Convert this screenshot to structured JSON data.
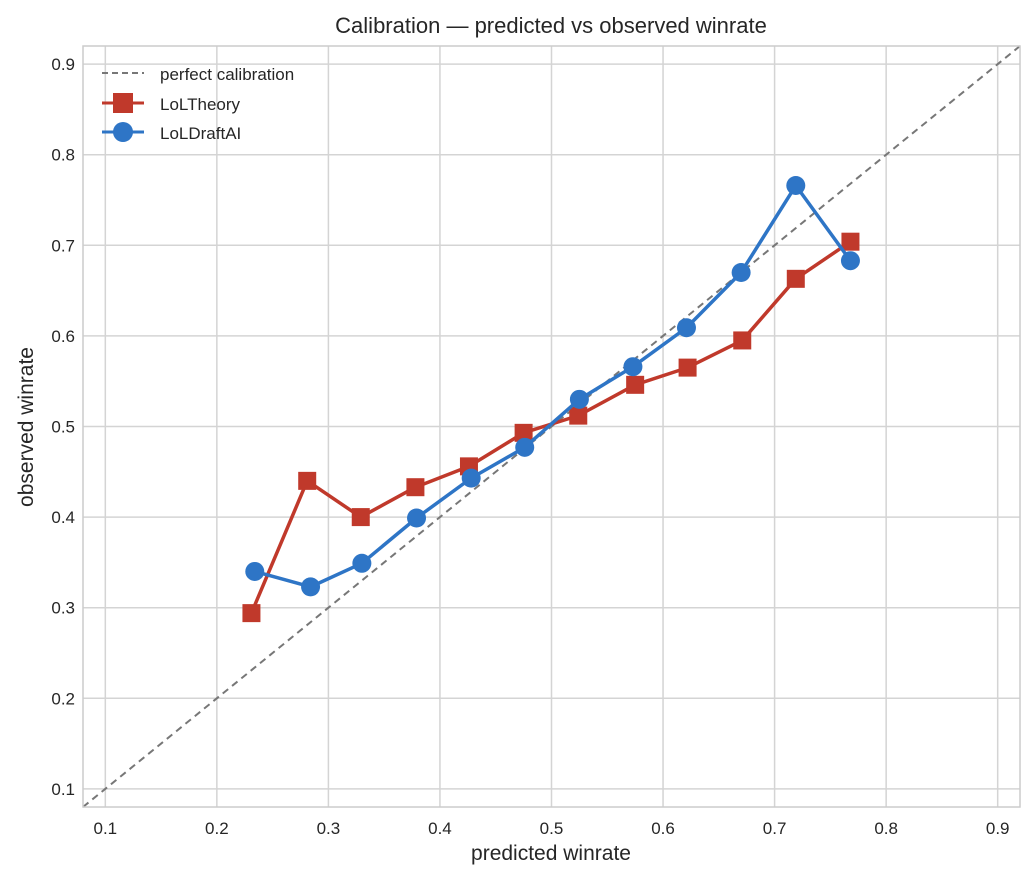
{
  "chart_data": {
    "type": "line",
    "title": "Calibration — predicted vs observed winrate",
    "xlabel": "predicted winrate",
    "ylabel": "observed winrate",
    "xlim": [
      0.08,
      0.92
    ],
    "ylim": [
      0.08,
      0.92
    ],
    "xticks": [
      0.1,
      0.2,
      0.3,
      0.4,
      0.5,
      0.6,
      0.7,
      0.8,
      0.9
    ],
    "yticks": [
      0.1,
      0.2,
      0.3,
      0.4,
      0.5,
      0.6,
      0.7,
      0.8,
      0.9
    ],
    "xtick_labels": [
      "0.1",
      "0.2",
      "0.3",
      "0.4",
      "0.5",
      "0.6",
      "0.7",
      "0.8",
      "0.9"
    ],
    "ytick_labels": [
      "0.1",
      "0.2",
      "0.3",
      "0.4",
      "0.5",
      "0.6",
      "0.7",
      "0.8",
      "0.9"
    ],
    "grid": true,
    "legend_position": "upper left",
    "reference_line": {
      "name": "perfect calibration",
      "x": [
        0.08,
        0.92
      ],
      "y": [
        0.08,
        0.92
      ],
      "style": "dashed",
      "color": "#777777"
    },
    "series": [
      {
        "name": "LoLTheory",
        "marker": "square",
        "color": "#c0392b",
        "x": [
          0.231,
          0.281,
          0.329,
          0.378,
          0.426,
          0.475,
          0.524,
          0.575,
          0.622,
          0.671,
          0.719,
          0.768
        ],
        "y": [
          0.294,
          0.44,
          0.4,
          0.433,
          0.456,
          0.493,
          0.512,
          0.546,
          0.565,
          0.595,
          0.663,
          0.704
        ]
      },
      {
        "name": "LoLDraftAI",
        "marker": "circle",
        "color": "#2e75c6",
        "x": [
          0.234,
          0.284,
          0.33,
          0.379,
          0.428,
          0.476,
          0.525,
          0.573,
          0.621,
          0.67,
          0.719,
          0.768
        ],
        "y": [
          0.34,
          0.323,
          0.349,
          0.399,
          0.443,
          0.477,
          0.53,
          0.566,
          0.609,
          0.67,
          0.766,
          0.683
        ]
      }
    ]
  },
  "legend": {
    "items": [
      {
        "label": "perfect calibration"
      },
      {
        "label": "LoLTheory"
      },
      {
        "label": "LoLDraftAI"
      }
    ]
  }
}
